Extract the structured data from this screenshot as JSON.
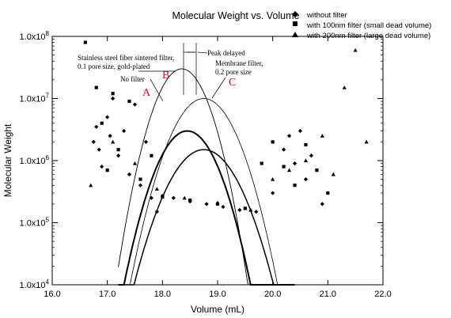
{
  "chart_data": {
    "type": "scatter",
    "title": "Molecular Weight vs. Volume",
    "xlabel": "Volume (mL)",
    "ylabel": "Molecular Weight",
    "xlim": [
      16.0,
      22.0
    ],
    "ylim": [
      10000,
      100000000
    ],
    "yscale": "log",
    "x_ticks": [
      "16.0",
      "17.0",
      "18.0",
      "19.0",
      "20.0",
      "21.0",
      "22.0"
    ],
    "y_ticks": [
      "1.0x10^4",
      "1.0x10^5",
      "1.0x10^6",
      "1.0x10^7",
      "1.0x10^8"
    ],
    "grid": false,
    "legend_position": "top-right",
    "legend": [
      {
        "symbol": "diamond",
        "label": "without filter"
      },
      {
        "symbol": "square",
        "label": "with 100nm filter (small dead volume)"
      },
      {
        "symbol": "triangle",
        "label": "with 200nm filter (large dead volume)"
      }
    ],
    "series": [
      {
        "name": "without filter",
        "marker": "diamond",
        "x": [
          16.75,
          16.8,
          16.85,
          16.9,
          17.0,
          17.05,
          17.1,
          17.2,
          17.3,
          17.4,
          17.5,
          17.6,
          17.7,
          17.8,
          17.9,
          18.0,
          18.2,
          18.5,
          18.8,
          19.1,
          19.4,
          19.7,
          20.0,
          20.2,
          20.3,
          20.4,
          20.5,
          20.6,
          20.7,
          20.9
        ],
        "y": [
          2000000,
          3500000,
          1500000,
          800000,
          5000000,
          2500000,
          10000000,
          1200000,
          3000000,
          600000,
          8000000,
          400000,
          2000000,
          250000,
          150000,
          270000,
          250000,
          220000,
          200000,
          180000,
          160000,
          150000,
          300000,
          1500000,
          2500000,
          900000,
          3000000,
          500000,
          1200000,
          200000
        ]
      },
      {
        "name": "with 100nm filter (small dead volume)",
        "marker": "square",
        "x": [
          16.6,
          16.8,
          16.9,
          17.0,
          17.1,
          17.2,
          17.4,
          17.6,
          17.8,
          18.0,
          18.5,
          19.0,
          19.5,
          19.8,
          20.0,
          20.2,
          20.4,
          20.6,
          20.8,
          21.0
        ],
        "y": [
          80000000,
          15000000,
          4000000,
          700000,
          12000000,
          1500000,
          9000000,
          500000,
          1200000,
          260000,
          230000,
          200000,
          170000,
          900000,
          2000000,
          800000,
          400000,
          1800000,
          700000,
          300000
        ]
      },
      {
        "name": "with 200nm filter (large dead volume)",
        "marker": "triangle",
        "x": [
          16.7,
          17.1,
          17.5,
          17.9,
          18.4,
          19.0,
          19.6,
          20.0,
          20.3,
          20.6,
          20.9,
          21.1,
          21.3,
          21.5,
          21.7
        ],
        "y": [
          400000,
          2000000,
          900000,
          350000,
          250000,
          210000,
          160000,
          500000,
          700000,
          1000000,
          2500000,
          600000,
          15000000,
          60000000,
          2000000
        ]
      }
    ],
    "trace_peaks": [
      {
        "label": "A",
        "center": 18.35,
        "peak": 30000000
      },
      {
        "label": "B",
        "center": 18.45,
        "peak": 3000000
      },
      {
        "label": "C",
        "center": 18.75,
        "peak": 10000000
      },
      {
        "label": "",
        "center": 18.75,
        "peak": 1500000
      }
    ],
    "annotations": [
      {
        "text_lines": [
          "Stainless steel fiber sintered filter,",
          "0.1 pore size, gold-plated"
        ]
      },
      {
        "text_lines": [
          "No filter"
        ]
      },
      {
        "text_lines": [
          "Peak delayed"
        ]
      },
      {
        "text_lines": [
          "Membrane filter,",
          "0.2 pore size"
        ]
      },
      {
        "text_lines": [
          "A"
        ],
        "color": "#c8102e"
      },
      {
        "text_lines": [
          "B"
        ],
        "color": "#c8102e"
      },
      {
        "text_lines": [
          "C"
        ],
        "color": "#c8102e"
      }
    ]
  }
}
